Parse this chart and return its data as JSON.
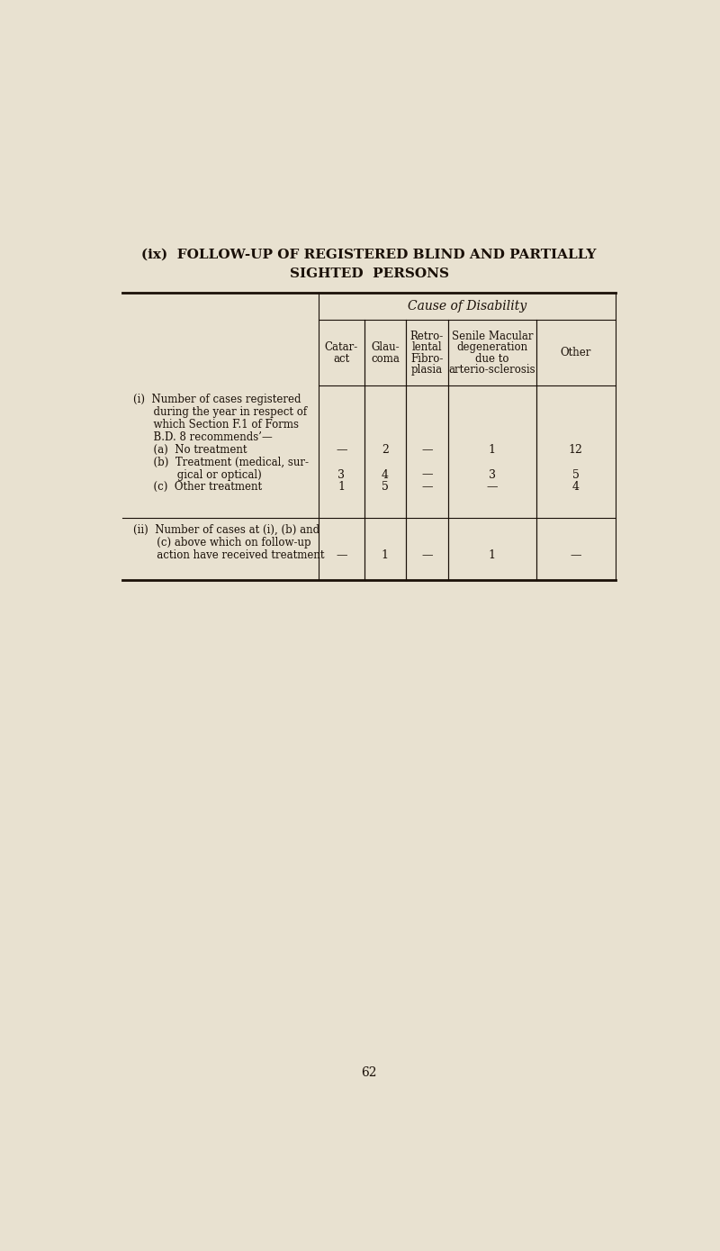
{
  "title_line1": "(ix)  FOLLOW-UP OF REGISTERED BLIND AND PARTIALLY",
  "title_line2": "SIGHTED  PERSONS",
  "bg_color": "#e8e1d0",
  "text_color": "#1a1008",
  "page_number": "62",
  "col_header_group": "Cause of Disability",
  "col_headers_line1": [
    "Catar-",
    "Glau-",
    "Retro-",
    "Senile Macular",
    "Other"
  ],
  "col_headers_line2": [
    "act",
    "coma",
    "lental",
    "degeneration",
    ""
  ],
  "col_headers_line3": [
    "",
    "",
    "Fibro-",
    "due to",
    ""
  ],
  "col_headers_line4": [
    "",
    "",
    "plasia",
    "arterio-sclerosis",
    ""
  ],
  "section_i_label": [
    "(i)  Number of cases registered",
    "      during the year in respect of",
    "      which Section F.1 of Forms",
    "      B.D. 8 recommends’—",
    "      (a)  No treatment",
    "      (b)  Treatment (medical, sur-",
    "             gical or optical)",
    "      (c)  Other treatment"
  ],
  "data_a": [
    "—",
    "2",
    "—",
    "1",
    "12"
  ],
  "data_b": [
    "3",
    "4",
    "—",
    "3",
    "5"
  ],
  "data_c": [
    "1",
    "5",
    "—",
    "—",
    "4"
  ],
  "section_ii_label": [
    "(ii)  Number of cases at (i), (b) and",
    "       (c) above which on follow-up",
    "       action have received treatment"
  ],
  "data_ii": [
    "—",
    "1",
    "—",
    "1",
    "—"
  ]
}
